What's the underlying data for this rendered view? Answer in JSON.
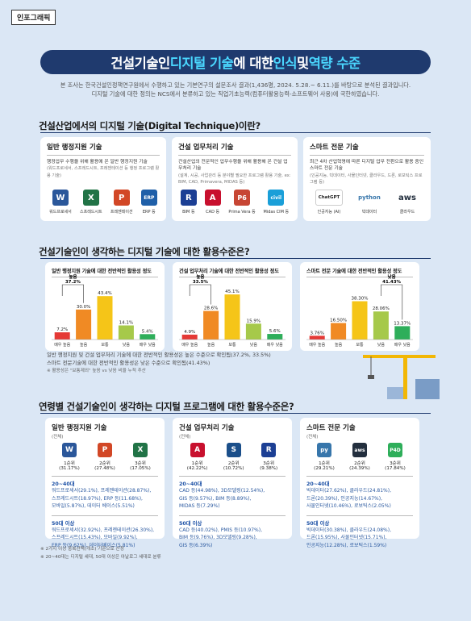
{
  "tag": "인포그래픽",
  "headline": {
    "part1": "건설기술인 ",
    "part2": "디지털 기술",
    "part3": "에 대한 ",
    "part4": "인식",
    "part5": " 및 ",
    "part6": "역량 수준"
  },
  "intro": {
    "line1": "본 조사는 한국건설인정책연구원에서 수행하고 있는 기본연구의 설문조사 결과(1,436명, 2024. 5.28.~ 6.11.)를 바탕으로 분석된 결과입니다.",
    "line2": "디지털 기술에 대한 정의는 NCS에서 분류하고 있는 직업기초능력(컴퓨터활용능력-소프트웨어 사용)에 국한하였습니다."
  },
  "section1": {
    "title": "건설산업에서의 디지털 기술(Digital Technique)이란?",
    "cards": [
      {
        "title": "일반 행정지원 기술",
        "desc": "행정업무 수행을 위해 활용에 온 일반 행정지원 기술",
        "sub": "(워드프로세서, 스프레드시트, 프레젠테이션 등 행정 프로그램 활용 기술)",
        "icons": [
          {
            "name": "word-icon",
            "glyph": "W",
            "color": "#2b579a",
            "label": "워드프로세서"
          },
          {
            "name": "excel-icon",
            "glyph": "X",
            "color": "#217346",
            "label": "스프레드시트"
          },
          {
            "name": "powerpoint-icon",
            "glyph": "P",
            "color": "#d24726",
            "label": "프레젠테이션"
          },
          {
            "name": "erp-icon",
            "glyph": "ERP",
            "color": "#1f5fa8",
            "label": "ERP 등"
          }
        ]
      },
      {
        "title": "건설 업무처리 기술",
        "desc": "건설산업의 전문적인 업무수행을 위해 활용해 온 건설 업무처리 기술",
        "sub": "(설계, 시공, 사업관리 등 분야별 필요한 프로그램 활용 기술, ex: BIM, CAD, Primavera, MIDAS 등)",
        "icons": [
          {
            "name": "bim-icon",
            "glyph": "R",
            "color": "#1c3f94",
            "label": "BIM 등"
          },
          {
            "name": "cad-icon",
            "glyph": "A",
            "color": "#c8102e",
            "label": "CAD 등"
          },
          {
            "name": "primavera-icon",
            "glyph": "P6",
            "color": "#c74634",
            "label": "Prima Vera 등"
          },
          {
            "name": "midas-icon",
            "glyph": "civil",
            "color": "#1a9fd8",
            "label": "Midas CIM 등"
          }
        ]
      },
      {
        "title": "스마트 전문 기술",
        "desc": "최근 4차 산업혁명에 따른 디지털 업무 전환으로 활용 중인 스마트 전문 기술",
        "sub": "(인공지능, 빅데이터, 사물인터넷, 클라우드, 드론, 로보틱스 프로그램 등)",
        "icons": [
          {
            "name": "chatgpt-icon",
            "glyph": "ChatGPT",
            "color": "#222222",
            "label": "인공지능 (AI)"
          },
          {
            "name": "python-icon",
            "glyph": "python",
            "color": "#3776ab",
            "label": "빅데이터"
          },
          {
            "name": "aws-icon",
            "glyph": "aws",
            "color": "#232f3e",
            "label": "클라우드"
          }
        ]
      }
    ]
  },
  "section2": {
    "title": "건설기술인이 생각하는 디지털 기술에 대한 활용수준은?",
    "charts": [
      {
        "title": "일반 행정지원 기술에 대한 전반적인 활용성 정도",
        "categories": [
          "매우 높음",
          "높음",
          "보통",
          "낮음",
          "매우 낮음"
        ],
        "values": [
          7.2,
          30.0,
          43.4,
          14.1,
          5.4
        ],
        "value_labels": [
          "7.2%",
          "30.0%",
          "43.4%",
          "14.1%",
          "5.4%"
        ],
        "bracket_label": "높음",
        "bracket_value": "37.2%"
      },
      {
        "title": "건설 업무처리 기술에 대한 전반적인 활용성 정도",
        "categories": [
          "매우 높음",
          "높음",
          "보통",
          "낮음",
          "매우 낮음"
        ],
        "values": [
          4.9,
          28.6,
          45.1,
          15.9,
          5.6
        ],
        "value_labels": [
          "4.9%",
          "28.6%",
          "45.1%",
          "15.9%",
          "5.6%"
        ],
        "bracket_label": "높음",
        "bracket_value": "33.5%"
      },
      {
        "title": "스마트 전문 기술에 대한 전반적인 활용성 정도",
        "categories": [
          "매우 높음",
          "높음",
          "보통",
          "낮음",
          "매우 낮음"
        ],
        "values": [
          3.76,
          16.5,
          38.3,
          28.06,
          13.37
        ],
        "value_labels": [
          "3.76%",
          "16.50%",
          "38.30%",
          "28.06%",
          "13.37%"
        ],
        "bracket_label": "낮음",
        "bracket_value": "41.43%"
      }
    ],
    "bar_colors": [
      "#e53935",
      "#f08a24",
      "#f5c518",
      "#a6c94a",
      "#2eae5a"
    ],
    "note1": "일반 행정지원 및 건설 업무처리 기술에 대한 전반적인 활용성은 높은 수준으로 확인됨(37.2%, 33.5%)",
    "note2": "스마트 전문기술에 대한 전반적인 활용성은 낮은 수준으로 확인됨(41.43%)",
    "note3": "※ 활용성은 \"보통제외\" 높음 vs 낮음 비율 누적 추산"
  },
  "section3": {
    "title": "연령별 건설기술인이 생각하는 디지털 프로그램에 대한 활용수준은?",
    "cards": [
      {
        "title": "일반 행정지원 기술",
        "sub": "(전체)",
        "ranks": [
          {
            "icon": "word-icon",
            "glyph": "W",
            "color": "#2b579a",
            "rank": "1순위",
            "pct": "(31.17%)"
          },
          {
            "icon": "powerpoint-icon",
            "glyph": "P",
            "color": "#d24726",
            "rank": "2순위",
            "pct": "(27.48%)"
          },
          {
            "icon": "excel-icon",
            "glyph": "X",
            "color": "#217346",
            "rank": "3순위",
            "pct": "(17.05%)"
          }
        ],
        "age1_label": "20~40대",
        "age1_lines": [
          "워드프로세서(29.1%), 프레젠테이션(28.87%),",
          "스프레드시트(18.97%), ERP 등(11.68%),",
          "모바일(5.87%), 데이터 베이스(5.51%)"
        ],
        "age2_label": "50대 이상",
        "age2_lines": [
          "워드프로세서(32.92%), 프레젠테이션(26.30%),",
          "스프레드시트(15.43%), 모바일(9.92%),",
          "ERP 등(9.62%), 데이터베이스(5.81%)"
        ]
      },
      {
        "title": "건설 업무처리 기술",
        "sub": "(전체)",
        "ranks": [
          {
            "icon": "cad-icon",
            "glyph": "A",
            "color": "#c8102e",
            "rank": "1순위",
            "pct": "(42.22%)"
          },
          {
            "icon": "sketchup-icon",
            "glyph": "S",
            "color": "#1b4f8a",
            "rank": "2순위",
            "pct": "(10.72%)"
          },
          {
            "icon": "bim-icon",
            "glyph": "R",
            "color": "#1c3f94",
            "rank": "3순위",
            "pct": "(9.38%)"
          }
        ],
        "age1_label": "20~40대",
        "age1_lines": [
          "CAD 등(44.98%), 3D모델링(12.54%),",
          "GIS 등(9.57%), BIM 등(8.89%),",
          "MIDAS 등(7.29%)"
        ],
        "age2_label": "50대 이상",
        "age2_lines": [
          "CAD 등(40.02%), PMIS 등(10.97%),",
          "BIM 등(9.76%), 3D모델링(9.28%),",
          "GIS 등(6.39%)"
        ]
      },
      {
        "title": "스마트 전문 기술",
        "sub": "(전체)",
        "ranks": [
          {
            "icon": "python-icon",
            "glyph": "py",
            "color": "#3776ab",
            "rank": "1순위",
            "pct": "(29.21%)"
          },
          {
            "icon": "aws-icon",
            "glyph": "aws",
            "color": "#232f3e",
            "rank": "2순위",
            "pct": "(24.39%)"
          },
          {
            "icon": "pix4d-icon",
            "glyph": "P4D",
            "color": "#2eae5a",
            "rank": "3순위",
            "pct": "(17.84%)"
          }
        ],
        "age1_label": "20~40대",
        "age1_lines": [
          "빅데이터(27.62%), 클라우드(24.81%),",
          "드론(20.39%), 인공지능(14.67%),",
          "사물인터넷(10.46%), 로보틱스(2.05%)"
        ],
        "age2_label": "50대 이상",
        "age2_lines": [
          "빅데이터(30.38%), 클라우드(24.08%),",
          "드론(15.95%), 사물인터넷(15.71%),",
          "인공지능(12.28%), 로보틱스(1.59%)"
        ]
      }
    ],
    "foot1": "※ 2가지 이상 중복선택(개소) 기준으로 산정",
    "foot2": "※ 20~40대는 디지털 세대, 50대 이상은 아날로그 세대로 분류"
  }
}
